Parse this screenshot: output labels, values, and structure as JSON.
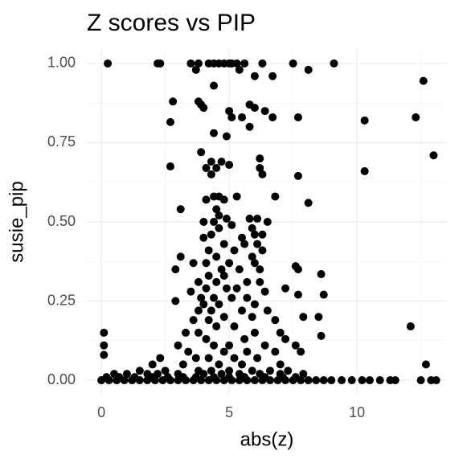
{
  "chart_data": {
    "type": "scatter",
    "title": "Z scores vs PIP",
    "x_label": "abs(z)",
    "y_label": "susie_pip",
    "color": "#000000",
    "grid": true,
    "xlim": [
      -0.57,
      13.52
    ],
    "ylim": [
      -0.043,
      1.043
    ],
    "xticks": [
      0,
      5,
      10
    ],
    "yticks": [
      {
        "value": 0,
        "label": "0.00"
      },
      {
        "value": 0.25,
        "label": "0.25"
      },
      {
        "value": 0.5,
        "label": "0.50"
      },
      {
        "value": 0.75,
        "label": "0.75"
      },
      {
        "value": 1,
        "label": "1.00"
      }
    ],
    "x": [
      0.25,
      2.2,
      2.3,
      3.5,
      3.8,
      4.2,
      4.4,
      4.6,
      4.8,
      5.0,
      5.1,
      5.3,
      5.6,
      6.3,
      7.5,
      9.1,
      3.7,
      5.4,
      8.1,
      6.0,
      6.7,
      12.6,
      4.4,
      2.8,
      3.8,
      3.9,
      5.8,
      4.0,
      6.0,
      5.0,
      6.4,
      5.1,
      5.5,
      6.7,
      7.7,
      12.3,
      10.3,
      2.7,
      5.8,
      4.4,
      4.9,
      3.9,
      13.0,
      6.2,
      4.3,
      4.7,
      5.0,
      2.7,
      4.1,
      4.5,
      6.2,
      10.3,
      4.3,
      6.3,
      7.7,
      4.4,
      4.6,
      5.3,
      6.8,
      4.1,
      4.8,
      8.1,
      3.1,
      4.5,
      4.6,
      4.9,
      5.8,
      6.1,
      4.0,
      4.4,
      6.5,
      5.1,
      4.6,
      5.9,
      4.3,
      6.0,
      6.3,
      4.0,
      5.5,
      4.8,
      5.6,
      6.1,
      4.2,
      5.2,
      6.3,
      3.1,
      4.5,
      5.9,
      3.6,
      4.1,
      5.0,
      6.0,
      7.6,
      2.9,
      4.7,
      5.4,
      6.2,
      7.7,
      8.6,
      4.2,
      4.8,
      3.8,
      4.5,
      5.7,
      6.2,
      4.1,
      4.9,
      5.3,
      7.2,
      3.5,
      6.4,
      7.7,
      8.7,
      3.9,
      4.4,
      5.1,
      5.7,
      2.9,
      4.0,
      4.6,
      6.0,
      3.8,
      4.3,
      5.5,
      6.5,
      4.8,
      5.9,
      7.9,
      8.5,
      3.6,
      4.2,
      6.8,
      12.1,
      4.5,
      5.2,
      0.1,
      3.3,
      3.8,
      6.0,
      7.0,
      8.6,
      4.1,
      5.6,
      7.2,
      0.1,
      3.0,
      4.4,
      5.0,
      6.4,
      7.6,
      3.4,
      4.8,
      5.7,
      6.8,
      7.8,
      0.1,
      2.3,
      3.7,
      4.2,
      5.2,
      6.1,
      12.7,
      2.0,
      3.2,
      4.6,
      5.5,
      7.0,
      1.5,
      2.5,
      3.8,
      4.3,
      5.0,
      5.9,
      6.6,
      7.3,
      0.5,
      1.0,
      1.8,
      2.2,
      3.0,
      4.0,
      4.7,
      5.4,
      6.2,
      7.0,
      7.9,
      0.0,
      0.3,
      0.6,
      0.9,
      1.2,
      1.5,
      1.8,
      2.1,
      2.4,
      2.7,
      3.0,
      3.3,
      3.6,
      3.9,
      4.2,
      4.5,
      4.8,
      5.1,
      5.4,
      5.7,
      6.0,
      6.3,
      6.6,
      6.9,
      7.2,
      7.5,
      7.8,
      8.1,
      8.4,
      8.7,
      9.0,
      9.4,
      9.8,
      10.2,
      10.5,
      10.9,
      11.3,
      11.5,
      12.5,
      12.9,
      13.1,
      0.2,
      0.7,
      1.3,
      2.0,
      2.6,
      3.2,
      3.7,
      4.4,
      5.0,
      5.6,
      6.4,
      7.1,
      7.6
    ],
    "y": [
      1,
      1,
      1,
      1,
      1,
      1,
      1,
      1,
      1,
      1,
      1,
      1,
      1,
      1,
      1,
      1,
      0.98,
      0.98,
      0.98,
      0.96,
      0.96,
      0.945,
      0.93,
      0.88,
      0.88,
      0.87,
      0.87,
      0.86,
      0.86,
      0.85,
      0.85,
      0.83,
      0.83,
      0.83,
      0.83,
      0.83,
      0.82,
      0.815,
      0.8,
      0.78,
      0.77,
      0.72,
      0.71,
      0.7,
      0.69,
      0.69,
      0.68,
      0.675,
      0.67,
      0.67,
      0.67,
      0.66,
      0.65,
      0.65,
      0.645,
      0.58,
      0.58,
      0.58,
      0.58,
      0.57,
      0.57,
      0.56,
      0.54,
      0.54,
      0.52,
      0.51,
      0.51,
      0.51,
      0.5,
      0.5,
      0.5,
      0.49,
      0.48,
      0.48,
      0.46,
      0.46,
      0.46,
      0.45,
      0.45,
      0.43,
      0.43,
      0.43,
      0.41,
      0.41,
      0.41,
      0.39,
      0.39,
      0.39,
      0.37,
      0.37,
      0.37,
      0.37,
      0.36,
      0.35,
      0.35,
      0.35,
      0.35,
      0.35,
      0.335,
      0.33,
      0.33,
      0.31,
      0.31,
      0.31,
      0.31,
      0.29,
      0.29,
      0.29,
      0.29,
      0.28,
      0.28,
      0.27,
      0.27,
      0.26,
      0.26,
      0.26,
      0.26,
      0.25,
      0.24,
      0.24,
      0.24,
      0.22,
      0.22,
      0.22,
      0.22,
      0.2,
      0.2,
      0.2,
      0.2,
      0.19,
      0.19,
      0.19,
      0.17,
      0.17,
      0.17,
      0.15,
      0.15,
      0.15,
      0.15,
      0.15,
      0.14,
      0.13,
      0.13,
      0.13,
      0.11,
      0.11,
      0.11,
      0.11,
      0.11,
      0.11,
      0.09,
      0.09,
      0.09,
      0.09,
      0.09,
      0.08,
      0.07,
      0.07,
      0.07,
      0.07,
      0.07,
      0.05,
      0.05,
      0.05,
      0.05,
      0.05,
      0.05,
      0.03,
      0.03,
      0.03,
      0.03,
      0.03,
      0.03,
      0.03,
      0.03,
      0.02,
      0.02,
      0.02,
      0.02,
      0.02,
      0.02,
      0.02,
      0.02,
      0.02,
      0.02,
      0.02,
      0,
      0,
      0,
      0,
      0,
      0,
      0,
      0,
      0,
      0,
      0,
      0,
      0,
      0,
      0,
      0,
      0,
      0,
      0,
      0,
      0,
      0,
      0,
      0,
      0,
      0,
      0,
      0,
      0,
      0,
      0,
      0,
      0,
      0,
      0,
      0,
      0,
      0,
      0,
      0,
      0,
      0.01,
      0.01,
      0.01,
      0.01,
      0.01,
      0.01,
      0.01,
      0.01,
      0.01,
      0.01,
      0.01,
      0.01,
      0.01
    ]
  }
}
